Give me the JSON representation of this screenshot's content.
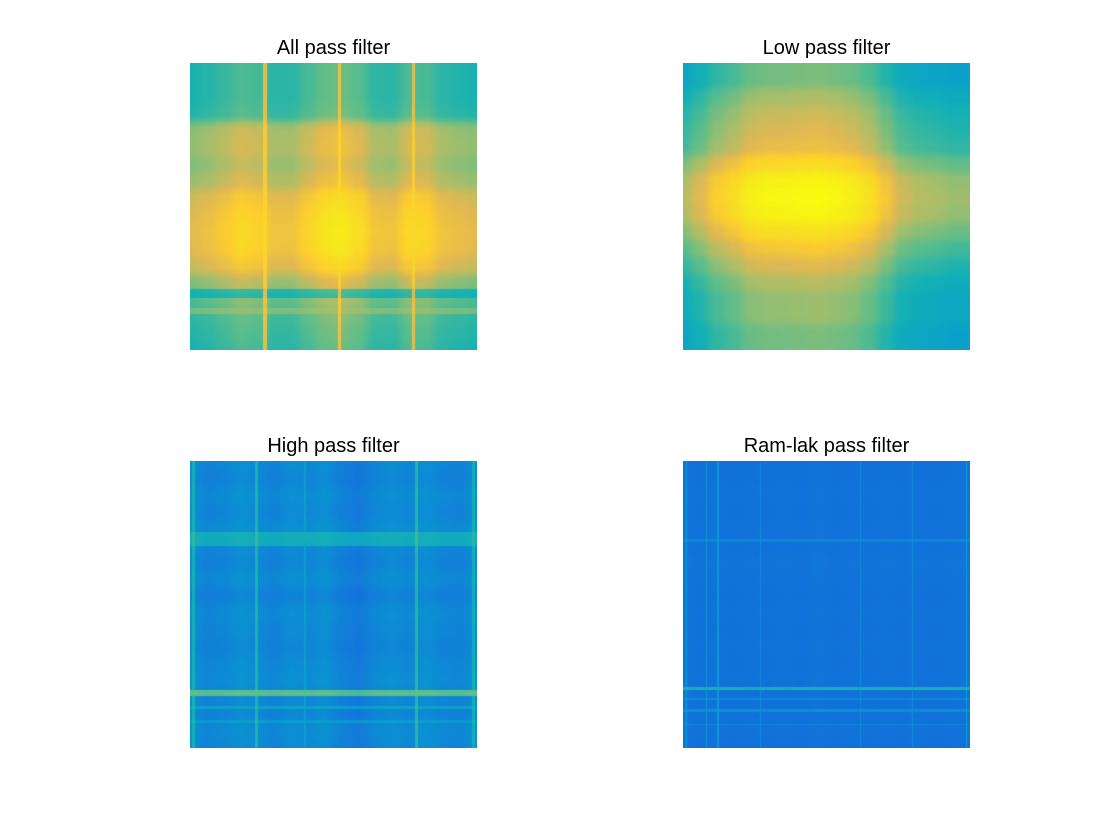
{
  "figure": {
    "background": "#ffffff"
  },
  "chart_data": [
    {
      "type": "heatmap",
      "title": "All pass filter",
      "colormap": "parula",
      "axes_visible": false,
      "grid": false,
      "legend": "none",
      "value_range": [
        0,
        1
      ],
      "row_profile": [
        0.3,
        0.3,
        0.3,
        0.32,
        0.58,
        0.6,
        0.55,
        0.62,
        0.8,
        0.88,
        0.92,
        0.9,
        0.78,
        0.55,
        0.42,
        0.35,
        0.32,
        0.3
      ],
      "col_profile": [
        0.55,
        0.6,
        0.68,
        0.78,
        0.74,
        0.62,
        0.62,
        0.75,
        0.88,
        0.92,
        0.82,
        0.64,
        0.62,
        0.78,
        0.76,
        0.62,
        0.58,
        0.55
      ],
      "bands": [
        {
          "pos": 0.805,
          "width": 0.03,
          "value": 0.3
        },
        {
          "pos": 0.865,
          "width": 0.02,
          "value": 0.55
        }
      ],
      "vlines": [
        {
          "pos": 0.26,
          "width": 0.012,
          "value": 0.8
        },
        {
          "pos": 0.52,
          "width": 0.01,
          "value": 0.8
        },
        {
          "pos": 0.78,
          "width": 0.01,
          "value": 0.78
        }
      ]
    },
    {
      "type": "heatmap",
      "title": "Low pass filter",
      "colormap": "parula",
      "axes_visible": false,
      "grid": false,
      "legend": "none",
      "value_range": [
        0,
        1
      ],
      "row_profile": [
        0.3,
        0.3,
        0.38,
        0.45,
        0.5,
        0.55,
        0.75,
        0.95,
        1.0,
        0.95,
        0.78,
        0.62,
        0.5,
        0.4,
        0.35,
        0.35,
        0.3,
        0.3
      ],
      "col_profile": [
        0.4,
        0.5,
        0.65,
        0.75,
        0.9,
        0.95,
        0.96,
        0.98,
        1.0,
        0.96,
        0.9,
        0.78,
        0.6,
        0.45,
        0.4,
        0.38,
        0.35,
        0.35
      ],
      "bands": [],
      "vlines": []
    },
    {
      "type": "heatmap",
      "title": "High pass filter",
      "colormap": "parula",
      "axes_visible": false,
      "grid": false,
      "legend": "none",
      "value_range": [
        0,
        1
      ],
      "row_profile": [
        0.22,
        0.2,
        0.24,
        0.22,
        0.25,
        0.23,
        0.2,
        0.24,
        0.18,
        0.24,
        0.22,
        0.2,
        0.23,
        0.25,
        0.22,
        0.2,
        0.24,
        0.22
      ],
      "col_profile": [
        0.3,
        0.22,
        0.24,
        0.3,
        0.26,
        0.22,
        0.28,
        0.25,
        0.3,
        0.2,
        0.16,
        0.24,
        0.28,
        0.24,
        0.3,
        0.24,
        0.22,
        0.3
      ],
      "bands": [
        {
          "pos": 0.27,
          "width": 0.05,
          "value": 0.46
        },
        {
          "pos": 0.81,
          "width": 0.02,
          "value": 0.66
        },
        {
          "pos": 0.86,
          "width": 0.012,
          "value": 0.4
        },
        {
          "pos": 0.91,
          "width": 0.01,
          "value": 0.36
        }
      ],
      "vlines": [
        {
          "pos": 0.01,
          "width": 0.01,
          "value": 0.44
        },
        {
          "pos": 0.23,
          "width": 0.012,
          "value": 0.46
        },
        {
          "pos": 0.4,
          "width": 0.008,
          "value": 0.34
        },
        {
          "pos": 0.79,
          "width": 0.012,
          "value": 0.48
        },
        {
          "pos": 0.99,
          "width": 0.01,
          "value": 0.42
        }
      ]
    },
    {
      "type": "heatmap",
      "title": "Ram-lak pass filter",
      "colormap": "parula",
      "axes_visible": false,
      "grid": false,
      "legend": "none",
      "value_range": [
        0,
        1
      ],
      "row_profile": [
        0.16,
        0.16,
        0.17,
        0.16,
        0.17,
        0.16,
        0.18,
        0.17,
        0.16,
        0.17,
        0.16,
        0.17,
        0.16,
        0.17,
        0.16,
        0.16,
        0.17,
        0.16
      ],
      "col_profile": [
        0.18,
        0.16,
        0.17,
        0.16,
        0.17,
        0.16,
        0.17,
        0.16,
        0.18,
        0.16,
        0.17,
        0.16,
        0.17,
        0.16,
        0.17,
        0.16,
        0.17,
        0.18
      ],
      "bands": [
        {
          "pos": 0.275,
          "width": 0.01,
          "value": 0.3
        },
        {
          "pos": 0.795,
          "width": 0.01,
          "value": 0.55
        },
        {
          "pos": 0.83,
          "width": 0.006,
          "value": 0.32
        },
        {
          "pos": 0.87,
          "width": 0.01,
          "value": 0.34
        },
        {
          "pos": 0.92,
          "width": 0.006,
          "value": 0.3
        }
      ],
      "vlines": [
        {
          "pos": 0.01,
          "width": 0.006,
          "value": 0.36
        },
        {
          "pos": 0.08,
          "width": 0.005,
          "value": 0.32
        },
        {
          "pos": 0.12,
          "width": 0.005,
          "value": 0.34
        },
        {
          "pos": 0.27,
          "width": 0.004,
          "value": 0.28
        },
        {
          "pos": 0.62,
          "width": 0.004,
          "value": 0.28
        },
        {
          "pos": 0.8,
          "width": 0.005,
          "value": 0.3
        },
        {
          "pos": 0.99,
          "width": 0.006,
          "value": 0.36
        }
      ]
    }
  ]
}
